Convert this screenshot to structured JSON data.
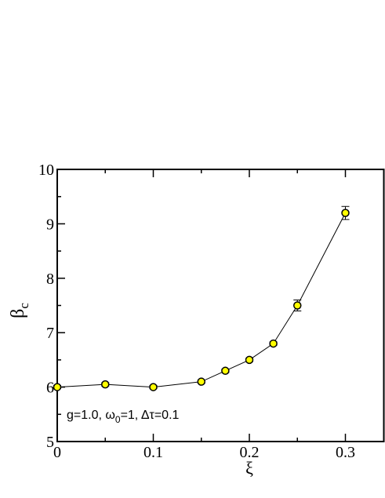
{
  "chart_data": {
    "type": "scatter",
    "xlabel": "ξ",
    "ylabel": {
      "main": "β",
      "sub": "c"
    },
    "annotation": [
      "g=1.0, ω",
      "0",
      "=1, Δτ=0.1"
    ],
    "x": [
      0,
      0.05,
      0.1,
      0.15,
      0.175,
      0.2,
      0.225,
      0.25,
      0.3
    ],
    "series": [
      {
        "values": [
          6.0,
          6.05,
          6.0,
          6.1,
          6.3,
          6.5,
          6.8,
          7.5,
          9.2
        ],
        "errors": [
          0.03,
          0.03,
          0.03,
          0.03,
          0.03,
          0.03,
          0.03,
          0.1,
          0.12
        ],
        "color": "#ffff00"
      }
    ],
    "xlim": [
      0,
      0.34
    ],
    "ylim": [
      5,
      10
    ],
    "xticks": [
      0,
      0.1,
      0.2,
      0.3
    ],
    "yticks": [
      5,
      6,
      7,
      8,
      9,
      10
    ],
    "xminorticks": [
      0.05,
      0.15,
      0.25
    ],
    "yminorticks": [
      5.5,
      6.5,
      7.5,
      8.5,
      9.5
    ]
  }
}
